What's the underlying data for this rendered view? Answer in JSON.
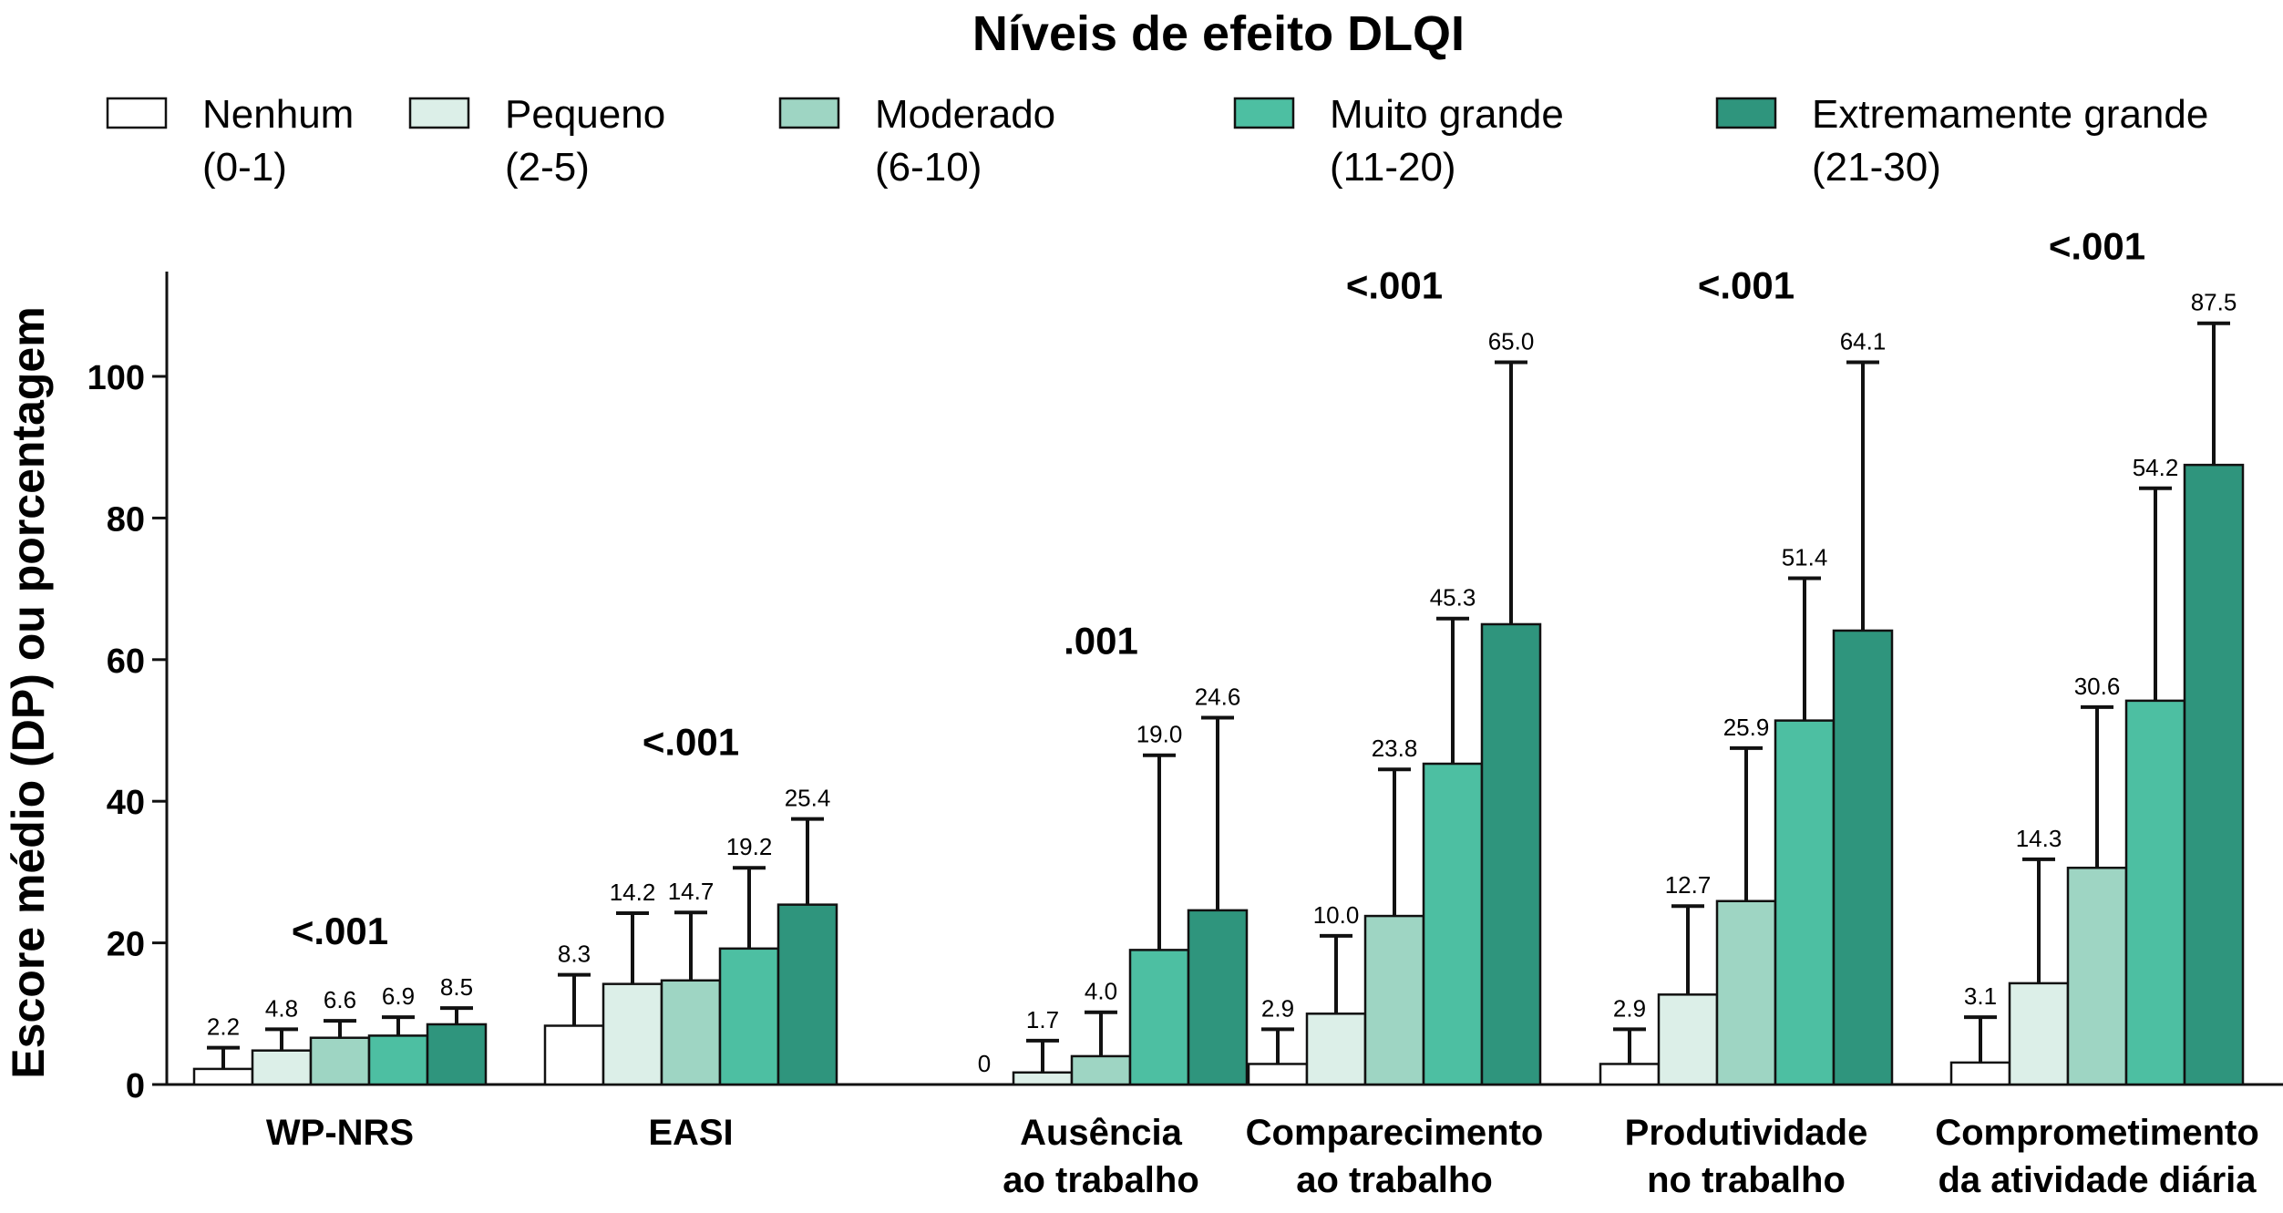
{
  "chart_data": {
    "type": "bar",
    "title": "Níveis de efeito DLQI",
    "ylabel": "Escore médio (DP) ou porcentagem",
    "xlabel": "",
    "ylim": [
      0,
      115
    ],
    "yticks": [
      0,
      20,
      40,
      60,
      80,
      100
    ],
    "categories": [
      {
        "lines": [
          "WP-NRS"
        ]
      },
      {
        "lines": [
          "EASI"
        ]
      },
      {
        "lines": [
          "Ausência",
          "ao trabalho"
        ]
      },
      {
        "lines": [
          "Comparecimento",
          "ao trabalho"
        ]
      },
      {
        "lines": [
          "Produtividade",
          "no trabalho"
        ]
      },
      {
        "lines": [
          "Comprometimento",
          "da atividade diária"
        ]
      }
    ],
    "p_values": [
      "<.001",
      "<.001",
      ".001",
      "<.001",
      "<.001",
      "<.001"
    ],
    "series": [
      {
        "name": "Nenhum",
        "range": "(0-1)",
        "color": "#ffffff",
        "values": [
          2.2,
          8.3,
          0,
          2.9,
          2.9,
          3.1
        ],
        "labels": [
          "2.2",
          "8.3",
          "0",
          "2.9",
          "2.9",
          "3.1"
        ],
        "err_top": [
          5.2,
          15.5,
          null,
          7.8,
          7.8,
          9.5
        ]
      },
      {
        "name": "Pequeno",
        "range": "(2-5)",
        "color": "#dcefe8",
        "values": [
          4.8,
          14.2,
          1.7,
          10.0,
          12.7,
          14.3
        ],
        "labels": [
          "4.8",
          "14.2",
          "1.7",
          "10.0",
          "12.7",
          "14.3"
        ],
        "err_top": [
          7.8,
          24.2,
          6.2,
          21.0,
          25.2,
          31.8
        ]
      },
      {
        "name": "Moderado",
        "range": "(6-10)",
        "color": "#9ed5c3",
        "values": [
          6.6,
          14.7,
          4.0,
          23.8,
          25.9,
          30.6
        ],
        "labels": [
          "6.6",
          "14.7",
          "4.0",
          "23.8",
          "25.9",
          "30.6"
        ],
        "err_top": [
          9.0,
          24.3,
          10.2,
          44.5,
          47.5,
          53.3
        ]
      },
      {
        "name": "Muito grande",
        "range": "(11-20)",
        "color": "#4dbfa2",
        "values": [
          6.9,
          19.2,
          19.0,
          45.3,
          51.4,
          54.2
        ],
        "labels": [
          "6.9",
          "19.2",
          "19.0",
          "45.3",
          "51.4",
          "54.2"
        ],
        "err_top": [
          9.5,
          30.6,
          46.5,
          65.8,
          71.5,
          84.2
        ]
      },
      {
        "name": "Extremamente grande",
        "range": "(21-30)",
        "color": "#2f957d",
        "values": [
          8.5,
          25.4,
          24.6,
          65.0,
          64.1,
          87.5
        ],
        "labels": [
          "8.5",
          "25.4",
          "24.6",
          "65.0",
          "64.1",
          "87.5"
        ],
        "err_top": [
          10.8,
          37.5,
          51.8,
          102.0,
          102.0,
          107.5
        ]
      }
    ]
  }
}
